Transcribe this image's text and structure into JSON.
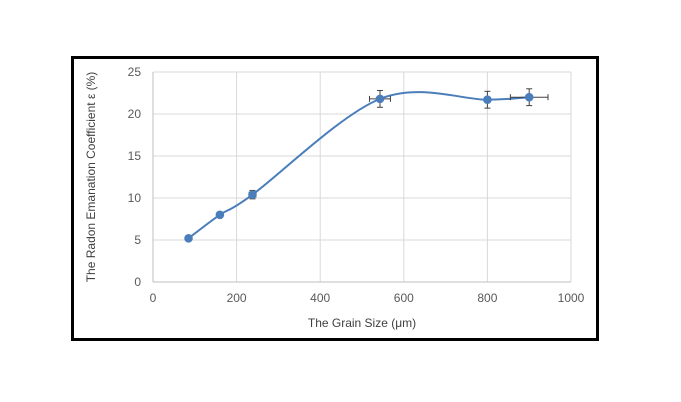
{
  "chart_data": {
    "type": "scatter",
    "title": "",
    "xlabel": "The Grain Size (μm)",
    "ylabel": "The Radon Emanation Coefficient ε (%)",
    "xlim": [
      0,
      1000
    ],
    "ylim": [
      0,
      25
    ],
    "x_ticks": [
      0,
      200,
      400,
      600,
      800,
      1000
    ],
    "y_ticks": [
      0,
      5,
      10,
      15,
      20,
      25
    ],
    "grid": true,
    "smooth_line": true,
    "legend": "none",
    "color": "#4a7ebb",
    "series": [
      {
        "points": [
          {
            "x": 85,
            "y": 5.2,
            "yerr": 0,
            "xerr": 0
          },
          {
            "x": 160,
            "y": 8.0,
            "yerr": 0.3,
            "xerr": 0
          },
          {
            "x": 238,
            "y": 10.4,
            "yerr": 0.5,
            "xerr": 8
          },
          {
            "x": 543,
            "y": 21.8,
            "yerr": 1.0,
            "xerr": 25
          },
          {
            "x": 800,
            "y": 21.7,
            "yerr": 1.0,
            "xerr": 0
          },
          {
            "x": 900,
            "y": 22.0,
            "yerr": 1.0,
            "xerr": 45
          }
        ]
      }
    ]
  }
}
